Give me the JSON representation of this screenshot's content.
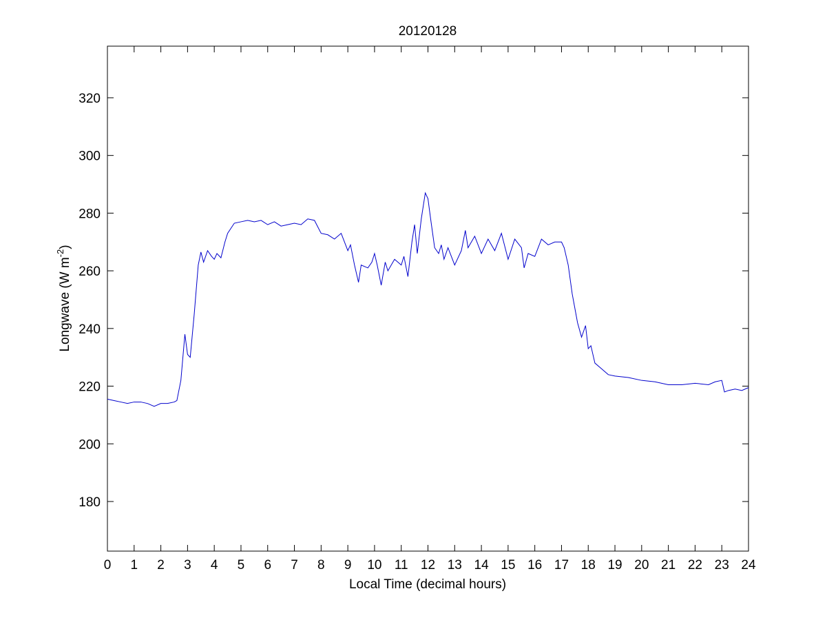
{
  "chart_data": {
    "type": "line",
    "title": "20120128",
    "xlabel": "Local Time (decimal hours)",
    "ylabel": {
      "text": "Longwave (W m",
      "sup": "-2",
      "end": ")"
    },
    "xlim": [
      0,
      24
    ],
    "ylim": [
      162.8,
      337.9
    ],
    "xticks": [
      0,
      1,
      2,
      3,
      4,
      5,
      6,
      7,
      8,
      9,
      10,
      11,
      12,
      13,
      14,
      15,
      16,
      17,
      18,
      19,
      20,
      21,
      22,
      23,
      24
    ],
    "yticks": [
      180,
      200,
      220,
      240,
      260,
      280,
      300,
      320
    ],
    "grid": false,
    "series": [
      {
        "color": "#0000cc",
        "x": [
          0,
          0.25,
          0.5,
          0.75,
          1,
          1.25,
          1.5,
          1.75,
          2,
          2.25,
          2.5,
          2.6,
          2.75,
          2.9,
          3.0,
          3.1,
          3.25,
          3.4,
          3.5,
          3.6,
          3.75,
          3.9,
          4.0,
          4.1,
          4.25,
          4.4,
          4.5,
          4.75,
          5,
          5.25,
          5.5,
          5.75,
          6,
          6.25,
          6.5,
          6.75,
          7,
          7.25,
          7.5,
          7.75,
          8,
          8.25,
          8.5,
          8.75,
          9,
          9.1,
          9.25,
          9.4,
          9.5,
          9.75,
          9.9,
          10,
          10.1,
          10.25,
          10.4,
          10.5,
          10.75,
          11,
          11.1,
          11.25,
          11.4,
          11.5,
          11.6,
          11.75,
          11.9,
          12,
          12.1,
          12.25,
          12.4,
          12.5,
          12.6,
          12.75,
          13,
          13.25,
          13.4,
          13.5,
          13.75,
          14,
          14.25,
          14.5,
          14.75,
          15,
          15.25,
          15.5,
          15.6,
          15.75,
          16,
          16.25,
          16.5,
          16.75,
          17,
          17.1,
          17.25,
          17.4,
          17.5,
          17.6,
          17.75,
          17.9,
          18,
          18.1,
          18.25,
          18.5,
          18.75,
          19,
          19.5,
          20,
          20.5,
          21,
          21.5,
          22,
          22.5,
          22.75,
          23,
          23.1,
          23.25,
          23.5,
          23.75,
          24
        ],
        "values": [
          215.5,
          215,
          214.5,
          214,
          214.5,
          214.5,
          214,
          213,
          214,
          214,
          214.5,
          215,
          222,
          238,
          231,
          230,
          245,
          262,
          266.5,
          263,
          267,
          265,
          264,
          266,
          264.5,
          270,
          273,
          276.5,
          277,
          277.5,
          277,
          277.5,
          276,
          277,
          275.5,
          276,
          276.5,
          276,
          278,
          277.5,
          273,
          272.5,
          271,
          273,
          267,
          269,
          262,
          256,
          262,
          261,
          263,
          266,
          262,
          255,
          263,
          260,
          264,
          262,
          265,
          258,
          270,
          276,
          266,
          278,
          287,
          285,
          278,
          268,
          266,
          269,
          264,
          268,
          262,
          267,
          274,
          268,
          272,
          266,
          271,
          267,
          273,
          264,
          271,
          268,
          261,
          266,
          265,
          271,
          269,
          270,
          270,
          268,
          262,
          252,
          247,
          242,
          237,
          241,
          233,
          234,
          228,
          226,
          224,
          223.5,
          223,
          222,
          221.5,
          220.5,
          220.5,
          221,
          220.5,
          221.5,
          222,
          218,
          218.5,
          219,
          218.5,
          219.5
        ]
      }
    ]
  }
}
